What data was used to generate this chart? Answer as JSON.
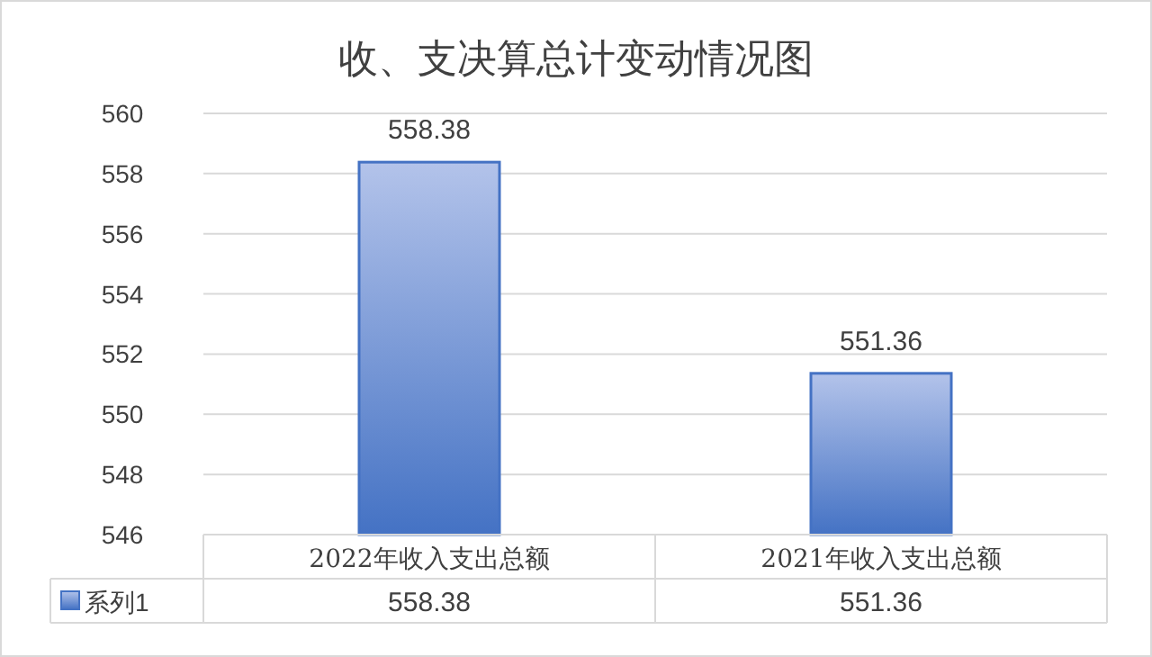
{
  "chart_data": {
    "type": "bar",
    "title": "收、支决算总计变动情况图",
    "categories": [
      "2022年收入支出总额",
      "2021年收入支出总额"
    ],
    "series": [
      {
        "name": "系列1",
        "color": "#4472c4",
        "values": [
          558.38,
          551.36
        ],
        "value_labels": [
          "558.38",
          "551.36"
        ]
      }
    ],
    "ylim": [
      546,
      560
    ],
    "yticks": [
      546,
      548,
      550,
      552,
      554,
      556,
      558,
      560
    ],
    "grid": "y",
    "legend": "bottom"
  }
}
